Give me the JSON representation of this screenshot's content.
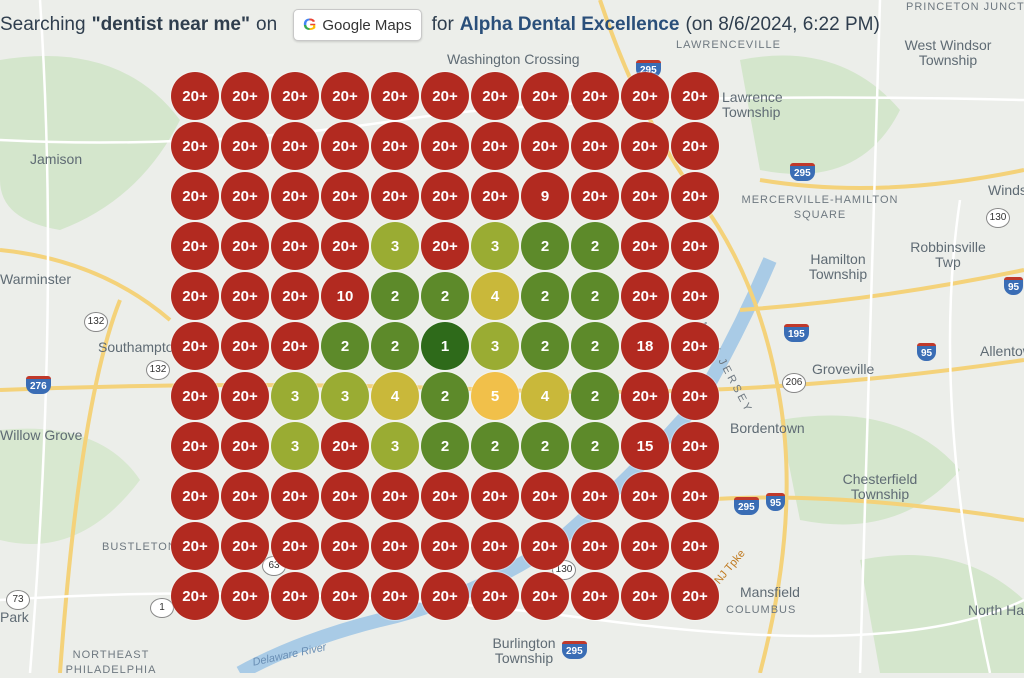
{
  "header": {
    "prefix": "Searching",
    "query": "\"dentist near me\"",
    "on": "on",
    "gmaps_label": "Google Maps",
    "for": "for",
    "business": "Alpha Dental Excellence",
    "timestamp": "(on 8/6/2024, 6:22 PM)"
  },
  "map": {
    "places": [
      "Washington Crossing",
      "LAWRENCEVILLE",
      "West Windsor Township",
      "PRINCETON JUNCTION",
      "Lawrence Township",
      "Jamison",
      "MERCERVILLE-HAMILTON SQUARE",
      "Hamilton Township",
      "Robbinsville Twp",
      "Windsor",
      "Warminster",
      "Southampton",
      "Groveville",
      "Allentown",
      "Bordentown",
      "NEW JERSEY",
      "Willow Grove",
      "Chesterfield Township",
      "BUSTLETON",
      "Mansfield",
      "COLUMBUS",
      "North Hanover",
      "Park",
      "NORTHEAST PHILADELPHIA",
      "Burlington Township",
      "Delaware River",
      "NJ Tpke"
    ],
    "highways": [
      "295",
      "295",
      "195",
      "95",
      "206",
      "130",
      "95",
      "276",
      "132",
      "132",
      "1",
      "73",
      "295",
      "130",
      "95",
      "63"
    ]
  },
  "colors": {
    "red": "#b22a20",
    "dark_green": "#2e6a1a",
    "green": "#5d8a2a",
    "olive": "#9aac33",
    "yellow_olive": "#c9b83a",
    "gold": "#f1c04a"
  },
  "grid": {
    "rows": 11,
    "cols": 11,
    "ranks": [
      [
        "20+",
        "20+",
        "20+",
        "20+",
        "20+",
        "20+",
        "20+",
        "20+",
        "20+",
        "20+",
        "20+"
      ],
      [
        "20+",
        "20+",
        "20+",
        "20+",
        "20+",
        "20+",
        "20+",
        "20+",
        "20+",
        "20+",
        "20+"
      ],
      [
        "20+",
        "20+",
        "20+",
        "20+",
        "20+",
        "20+",
        "20+",
        "9",
        "20+",
        "20+",
        "20+"
      ],
      [
        "20+",
        "20+",
        "20+",
        "20+",
        "3",
        "20+",
        "3",
        "2",
        "2",
        "20+",
        "20+"
      ],
      [
        "20+",
        "20+",
        "20+",
        "10",
        "2",
        "2",
        "4",
        "2",
        "2",
        "20+",
        "20+"
      ],
      [
        "20+",
        "20+",
        "20+",
        "2",
        "2",
        "1",
        "3",
        "2",
        "2",
        "18",
        "20+"
      ],
      [
        "20+",
        "20+",
        "3",
        "3",
        "4",
        "2",
        "5",
        "4",
        "2",
        "20+",
        "20+"
      ],
      [
        "20+",
        "20+",
        "3",
        "20+",
        "3",
        "2",
        "2",
        "2",
        "2",
        "15",
        "20+"
      ],
      [
        "20+",
        "20+",
        "20+",
        "20+",
        "20+",
        "20+",
        "20+",
        "20+",
        "20+",
        "20+",
        "20+"
      ],
      [
        "20+",
        "20+",
        "20+",
        "20+",
        "20+",
        "20+",
        "20+",
        "20+",
        "20+",
        "20+",
        "20+"
      ],
      [
        "20+",
        "20+",
        "20+",
        "20+",
        "20+",
        "20+",
        "20+",
        "20+",
        "20+",
        "20+",
        "20+"
      ]
    ]
  }
}
